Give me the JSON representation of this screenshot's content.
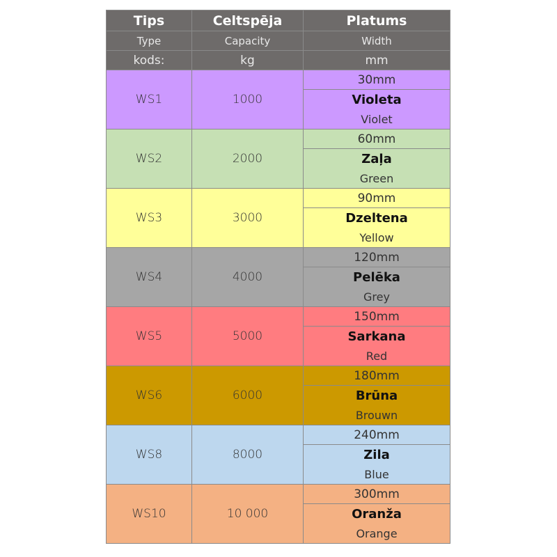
{
  "header": {
    "row1": [
      "Tips",
      "Celtspēja",
      "Platums"
    ],
    "row2": [
      "Type",
      "Capacity",
      "Width"
    ],
    "row3": [
      "kods:",
      "kg",
      "mm"
    ],
    "color": "#6e6b6a"
  },
  "rows": [
    {
      "code": "WS1",
      "capacity": "1000",
      "width": "30mm",
      "name_lv": "Violeta",
      "name_en": "Violet",
      "color": "#cc99ff"
    },
    {
      "code": "WS2",
      "capacity": "2000",
      "width": "60mm",
      "name_lv": "Zaļa",
      "name_en": "Green",
      "color": "#c6e0b4"
    },
    {
      "code": "WS3",
      "capacity": "3000",
      "width": "90mm",
      "name_lv": "Dzeltena",
      "name_en": "Yellow",
      "color": "#ffff99"
    },
    {
      "code": "WS4",
      "capacity": "4000",
      "width": "120mm",
      "name_lv": "Pelēka",
      "name_en": "Grey",
      "color": "#a6a6a6"
    },
    {
      "code": "WS5",
      "capacity": "5000",
      "width": "150mm",
      "name_lv": "Sarkana",
      "name_en": "Red",
      "color": "#ff7c80"
    },
    {
      "code": "WS6",
      "capacity": "6000",
      "width": "180mm",
      "name_lv": "Brūna",
      "name_en": "Brouwn",
      "color": "#cc9900"
    },
    {
      "code": "WS8",
      "capacity": "8000",
      "width": "240mm",
      "name_lv": "Zila",
      "name_en": "Blue",
      "color": "#bdd7ee"
    },
    {
      "code": "WS10",
      "capacity": "10 000",
      "width": "300mm",
      "name_lv": "Oranža",
      "name_en": "Orange",
      "color": "#f4b183"
    }
  ]
}
